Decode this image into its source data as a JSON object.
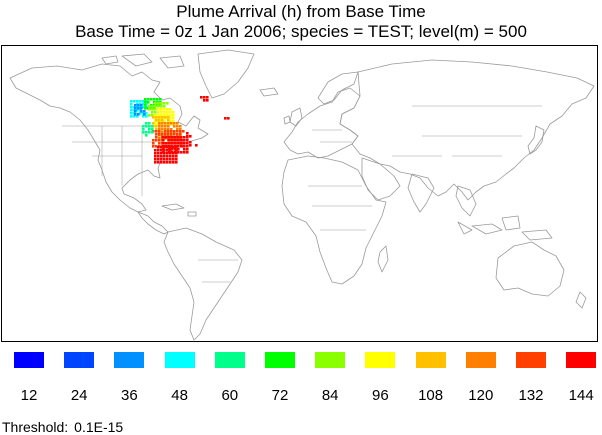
{
  "title": {
    "line1": "Plume Arrival (h) from Base Time",
    "line2": "Base Time =  0z  1 Jan 2006;  species = TEST;  level(m) =   500"
  },
  "legend": {
    "items": [
      {
        "label": "12",
        "color": "#0000ff"
      },
      {
        "label": "24",
        "color": "#0045ff"
      },
      {
        "label": "36",
        "color": "#0090ff"
      },
      {
        "label": "48",
        "color": "#00ffff"
      },
      {
        "label": "60",
        "color": "#00ff8a"
      },
      {
        "label": "72",
        "color": "#00ff00"
      },
      {
        "label": "84",
        "color": "#8aff00"
      },
      {
        "label": "96",
        "color": "#ffff00"
      },
      {
        "label": "108",
        "color": "#ffc000"
      },
      {
        "label": "120",
        "color": "#ff8000"
      },
      {
        "label": "132",
        "color": "#ff4000"
      },
      {
        "label": "144",
        "color": "#ff0000"
      }
    ]
  },
  "threshold": {
    "label": "Threshold:",
    "value": "0.1E-15"
  },
  "colors": {
    "coastline": "#9a9a9a",
    "frame": "#000000",
    "background": "#ffffff"
  }
}
